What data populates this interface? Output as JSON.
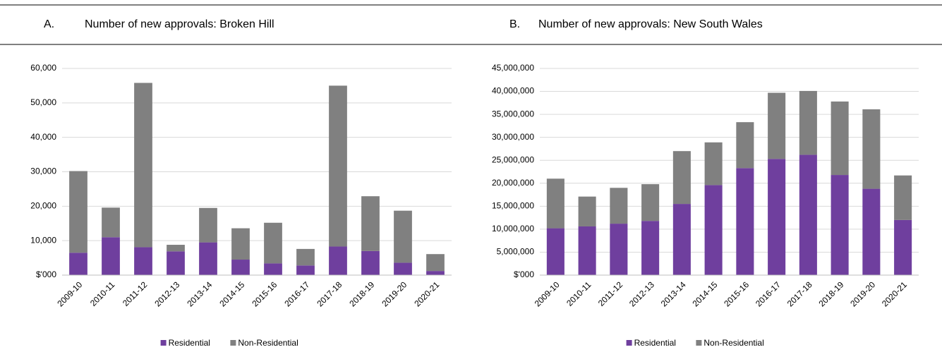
{
  "chart_data": [
    {
      "type": "stacked_bar",
      "label": "A.",
      "title": "Number of new approvals: Broken Hill",
      "categories": [
        "2009-10",
        "2010-11",
        "2011-12",
        "2012-13",
        "2013-14",
        "2014-15",
        "2015-16",
        "2016-17",
        "2017-18",
        "2018-19",
        "2019-20",
        "2020-21"
      ],
      "series": [
        {
          "name": "Residential",
          "color": "#6f3f9e",
          "values": [
            6500,
            11000,
            8100,
            6900,
            9500,
            4500,
            3400,
            2800,
            8300,
            7000,
            3600,
            1200
          ]
        },
        {
          "name": "Non-Residential",
          "color": "#808080",
          "values": [
            23700,
            8600,
            47700,
            1900,
            10000,
            9100,
            11800,
            4800,
            46700,
            15900,
            15100,
            4900
          ]
        }
      ],
      "ylim": [
        0,
        60000
      ],
      "yticks": [
        {
          "value": 0,
          "label": "$'000"
        },
        {
          "value": 10000,
          "label": "10,000"
        },
        {
          "value": 20000,
          "label": "20,000"
        },
        {
          "value": 30000,
          "label": "30,000"
        },
        {
          "value": 40000,
          "label": "40,000"
        },
        {
          "value": 50000,
          "label": "50,000"
        },
        {
          "value": 60000,
          "label": "60,000"
        }
      ],
      "grid": true,
      "legend": "bottom"
    },
    {
      "type": "stacked_bar",
      "label": "B.",
      "title": "Number of new approvals: New South Wales",
      "categories": [
        "2009-10",
        "2010-11",
        "2011-12",
        "2012-13",
        "2013-14",
        "2014-15",
        "2015-16",
        "2016-17",
        "2017-18",
        "2018-19",
        "2019-20",
        "2020-21"
      ],
      "series": [
        {
          "name": "Residential",
          "color": "#6f3f9e",
          "values": [
            10200000,
            10600000,
            11200000,
            11800000,
            15500000,
            19600000,
            23300000,
            25300000,
            26200000,
            21800000,
            18800000,
            12000000
          ]
        },
        {
          "name": "Non-Residential",
          "color": "#808080",
          "values": [
            10800000,
            6500000,
            7800000,
            8000000,
            11500000,
            9300000,
            10000000,
            14400000,
            13900000,
            16000000,
            17300000,
            9700000
          ]
        }
      ],
      "ylim": [
        0,
        45000000
      ],
      "yticks": [
        {
          "value": 0,
          "label": "$'000"
        },
        {
          "value": 5000000,
          "label": "5,000,000"
        },
        {
          "value": 10000000,
          "label": "10,000,000"
        },
        {
          "value": 15000000,
          "label": "15,000,000"
        },
        {
          "value": 20000000,
          "label": "20,000,000"
        },
        {
          "value": 25000000,
          "label": "25,000,000"
        },
        {
          "value": 30000000,
          "label": "30,000,000"
        },
        {
          "value": 35000000,
          "label": "35,000,000"
        },
        {
          "value": 40000000,
          "label": "40,000,000"
        },
        {
          "value": 45000000,
          "label": "45,000,000"
        }
      ],
      "grid": true,
      "legend": "bottom"
    }
  ]
}
